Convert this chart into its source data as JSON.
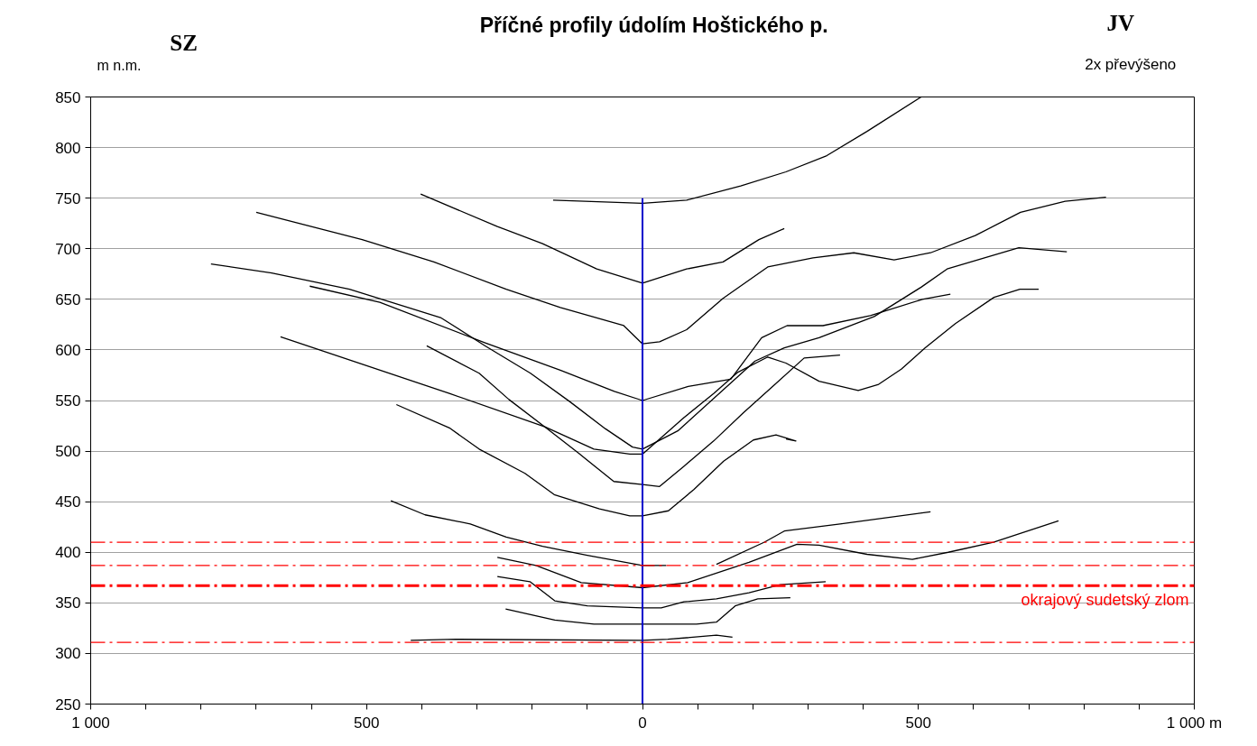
{
  "chart_data": {
    "type": "line",
    "title": "Příčné profily údolím Hoštického p.",
    "ylabel": "m n.m.",
    "annotations": [
      "SZ",
      "JV",
      "2x převýšeno"
    ],
    "xlim": [
      -1000,
      1000
    ],
    "ylim": [
      250,
      850
    ],
    "xticks": [
      {
        "value": -1000,
        "label": "1 000"
      },
      {
        "value": -900,
        "label": null
      },
      {
        "value": -800,
        "label": null
      },
      {
        "value": -700,
        "label": null
      },
      {
        "value": -600,
        "label": null
      },
      {
        "value": -500,
        "label": "500"
      },
      {
        "value": -400,
        "label": null
      },
      {
        "value": -300,
        "label": null
      },
      {
        "value": -200,
        "label": null
      },
      {
        "value": -100,
        "label": null
      },
      0,
      {
        "value": 100,
        "label": null
      },
      {
        "value": 200,
        "label": null
      },
      {
        "value": 300,
        "label": null
      },
      {
        "value": 400,
        "label": null
      },
      500,
      {
        "value": 600,
        "label": null
      },
      {
        "value": 700,
        "label": null
      },
      {
        "value": 800,
        "label": null
      },
      {
        "value": 900,
        "label": null
      },
      {
        "value": 1000,
        "label": "1 000 m"
      }
    ],
    "yticks": [
      250,
      300,
      350,
      400,
      450,
      500,
      550,
      600,
      650,
      700,
      750,
      800,
      850
    ],
    "grid": "y",
    "marker": "none",
    "line_style": "solid",
    "ref_lines": [
      {
        "axis": "y",
        "value": 410,
        "color": "#ff0000",
        "line_style": "dashdot"
      },
      {
        "axis": "y",
        "value": 387,
        "color": "#ff0000",
        "line_style": "dashdot"
      },
      {
        "axis": "y",
        "value": 367,
        "color": "#ff0000",
        "line_style": "dashdot",
        "label": "okrajový sudetský zlom"
      },
      {
        "axis": "y",
        "value": 311,
        "color": "#ff0000",
        "line_style": "dashdot"
      }
    ],
    "series": [
      {
        "color": "#000000",
        "x": [
          -162,
          0,
          80,
          178,
          260,
          334,
          407,
          505
        ],
        "values": [
          748,
          745,
          748,
          762,
          776,
          792,
          816,
          850
        ]
      },
      {
        "color": "#000000",
        "x": [
          -402,
          -263,
          -181,
          -83,
          0,
          80,
          146,
          211,
          257
        ],
        "values": [
          754,
          722,
          705,
          680,
          666,
          680,
          687,
          709,
          720
        ]
      },
      {
        "color": "#000000",
        "x": [
          -700,
          -508,
          -378,
          -247,
          -149,
          -34,
          0,
          31,
          80,
          146,
          227,
          309,
          383,
          456,
          522,
          603,
          685,
          766,
          840
        ],
        "values": [
          736,
          709,
          687,
          660,
          642,
          624,
          606,
          608,
          620,
          651,
          682,
          691,
          696,
          689,
          696,
          713,
          736,
          747,
          751
        ]
      },
      {
        "color": "#000000",
        "x": [
          -782,
          -672,
          -531,
          -366,
          -285,
          -203,
          -132,
          -67,
          -18,
          0,
          64,
          204,
          257,
          320,
          420,
          505,
          552,
          682,
          769
        ],
        "values": [
          685,
          676,
          660,
          632,
          604,
          577,
          549,
          522,
          504,
          502,
          520,
          589,
          602,
          612,
          633,
          662,
          680,
          701,
          697
        ]
      },
      {
        "color": "#000000",
        "x": [
          -603,
          -476,
          -285,
          -149,
          -51,
          0,
          83,
          160,
          216,
          262,
          327,
          413,
          507,
          558
        ],
        "values": [
          663,
          647,
          607,
          580,
          559,
          550,
          564,
          571,
          612,
          624,
          624,
          634,
          650,
          655
        ]
      },
      {
        "color": "#000000",
        "x": [
          -656,
          -350,
          -177,
          -88,
          -23,
          0,
          75,
          129,
          173,
          227,
          260,
          320,
          391,
          428,
          469,
          512,
          567,
          637,
          684,
          718
        ],
        "values": [
          613,
          557,
          524,
          502,
          497,
          497,
          533,
          557,
          578,
          593,
          587,
          569,
          560,
          566,
          581,
          602,
          626,
          652,
          660,
          660
        ]
      },
      {
        "color": "#000000",
        "x": [
          -391,
          -296,
          -242,
          -177,
          -116,
          -52,
          0,
          31,
          75,
          129,
          183,
          238,
          293,
          358
        ],
        "values": [
          604,
          577,
          551,
          524,
          498,
          470,
          467,
          465,
          485,
          510,
          538,
          565,
          592,
          595
        ]
      },
      {
        "color": "#000000",
        "x": [
          -446,
          -350,
          -296,
          -213,
          -160,
          -78,
          -23,
          0,
          47,
          93,
          147,
          201,
          242,
          278,
          260
        ],
        "values": [
          546,
          523,
          502,
          478,
          457,
          443,
          436,
          436,
          441,
          462,
          490,
          511,
          516,
          510,
          512
        ]
      },
      {
        "color": "#000000",
        "x": [
          -456,
          -394,
          -312,
          -247,
          -181,
          -100,
          0,
          43
        ],
        "values": [
          451,
          437,
          428,
          415,
          406,
          397,
          387,
          387
        ]
      },
      {
        "color": "#000000",
        "x": [
          134,
          221,
          257,
          358,
          522
        ],
        "values": [
          388,
          410,
          421,
          428,
          440
        ]
      },
      {
        "color": "#000000",
        "x": [
          -263,
          -193,
          -111,
          0,
          82,
          193,
          280,
          320,
          407,
          489,
          554,
          636,
          754
        ],
        "values": [
          395,
          387,
          370,
          365,
          370,
          390,
          408,
          407,
          398,
          393,
          400,
          410,
          431
        ]
      },
      {
        "color": "#000000",
        "x": [
          -263,
          -204,
          -159,
          -100,
          0,
          34,
          75,
          134,
          193,
          250,
          332
        ],
        "values": [
          376,
          371,
          352,
          347,
          345,
          345,
          351,
          354,
          360,
          368,
          371
        ]
      },
      {
        "color": "#000000",
        "x": [
          -248,
          -159,
          -88,
          0,
          98,
          134,
          168,
          209,
          268
        ],
        "values": [
          344,
          333,
          329,
          329,
          329,
          331,
          347,
          354,
          355
        ]
      },
      {
        "color": "#000000",
        "x": [
          -420,
          -338,
          0,
          46,
          134,
          163
        ],
        "values": [
          313,
          314,
          313,
          314,
          318,
          316
        ]
      },
      {
        "color": "#0000cc",
        "x": [
          0,
          0
        ],
        "values": [
          250,
          750
        ]
      }
    ]
  }
}
